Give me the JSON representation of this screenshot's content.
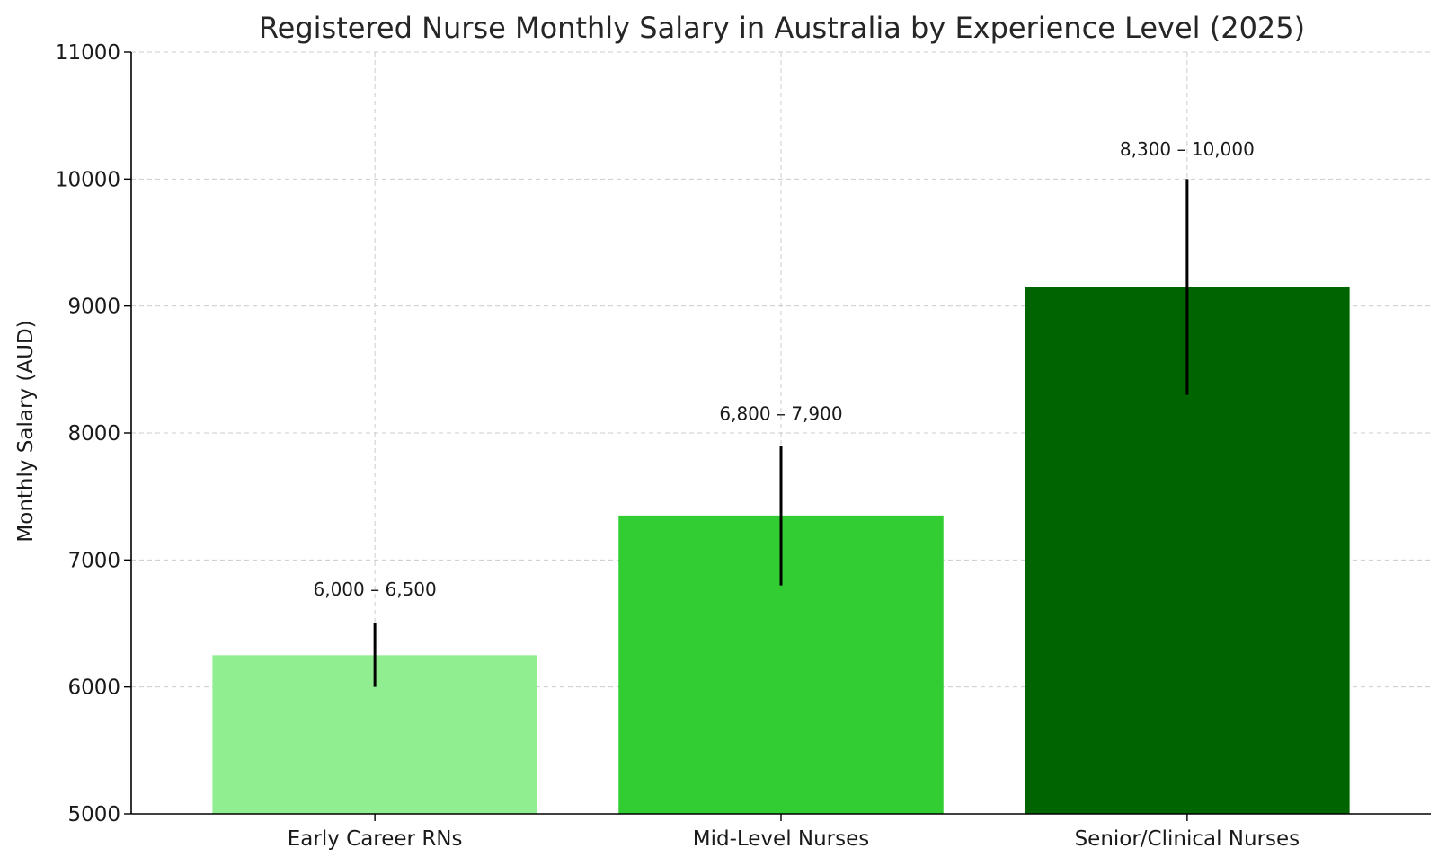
{
  "chart_data": {
    "type": "bar",
    "title": "Registered Nurse Monthly Salary in Australia by Experience Level (2025)",
    "xlabel": "",
    "ylabel": "Monthly Salary (AUD)",
    "ylim": [
      5000,
      11000
    ],
    "yticks": [
      5000,
      6000,
      7000,
      8000,
      9000,
      10000,
      11000
    ],
    "grid": true,
    "categories": [
      "Early Career RNs",
      "Mid-Level Nurses",
      "Senior/Clinical Nurses"
    ],
    "values": [
      6250,
      7350,
      9150
    ],
    "error_low": [
      6000,
      6800,
      8300
    ],
    "error_high": [
      6500,
      7900,
      10000
    ],
    "data_labels": [
      "6,000 – 6,500",
      "6,800 – 7,900",
      "8,300 – 10,000"
    ],
    "colors": [
      "#90ee90",
      "#32cd32",
      "#006400"
    ]
  }
}
